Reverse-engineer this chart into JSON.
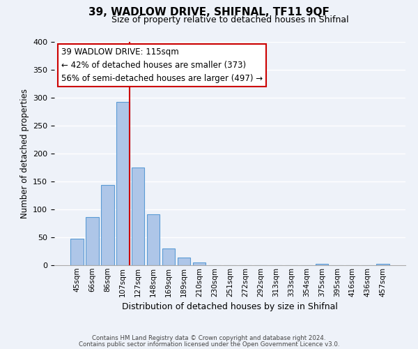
{
  "title": "39, WADLOW DRIVE, SHIFNAL, TF11 9QF",
  "subtitle": "Size of property relative to detached houses in Shifnal",
  "xlabel": "Distribution of detached houses by size in Shifnal",
  "ylabel": "Number of detached properties",
  "bar_labels": [
    "45sqm",
    "66sqm",
    "86sqm",
    "107sqm",
    "127sqm",
    "148sqm",
    "169sqm",
    "189sqm",
    "210sqm",
    "230sqm",
    "251sqm",
    "272sqm",
    "292sqm",
    "313sqm",
    "333sqm",
    "354sqm",
    "375sqm",
    "395sqm",
    "416sqm",
    "436sqm",
    "457sqm"
  ],
  "bar_values": [
    47,
    86,
    144,
    293,
    175,
    91,
    30,
    14,
    5,
    0,
    0,
    0,
    0,
    0,
    0,
    0,
    2,
    0,
    0,
    0,
    2
  ],
  "bar_color": "#aec6e8",
  "bar_edge_color": "#5b9bd5",
  "vline_color": "#cc0000",
  "ylim": [
    0,
    400
  ],
  "yticks": [
    0,
    50,
    100,
    150,
    200,
    250,
    300,
    350,
    400
  ],
  "annotation_title": "39 WADLOW DRIVE: 115sqm",
  "annotation_line1": "← 42% of detached houses are smaller (373)",
  "annotation_line2": "56% of semi-detached houses are larger (497) →",
  "annotation_box_color": "#ffffff",
  "annotation_box_edge": "#cc0000",
  "footer1": "Contains HM Land Registry data © Crown copyright and database right 2024.",
  "footer2": "Contains public sector information licensed under the Open Government Licence v3.0.",
  "bg_color": "#eef2f9",
  "grid_color": "#ffffff"
}
